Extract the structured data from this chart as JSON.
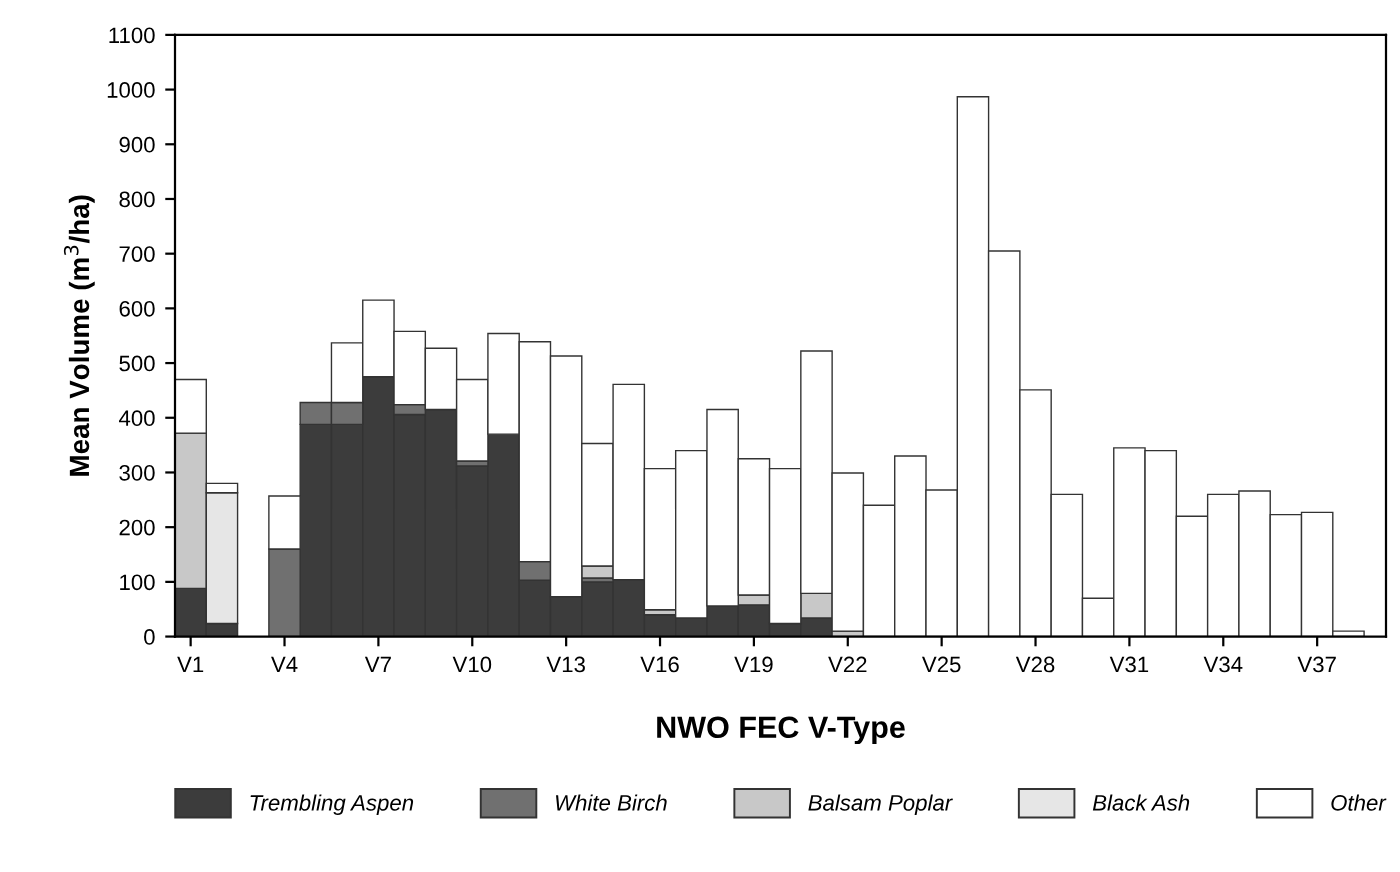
{
  "chart_data": {
    "type": "bar",
    "stacked": true,
    "xlabel": "NWO FEC V-Type",
    "ylabel": "Mean Volume (m$^{3}$/ha)",
    "categories": [
      "V1",
      null,
      null,
      "V4",
      null,
      null,
      "V7",
      null,
      null,
      "V10",
      null,
      null,
      "V13",
      null,
      null,
      "V16",
      null,
      null,
      "V19",
      null,
      null,
      "V22",
      null,
      null,
      "V25",
      null,
      null,
      "V28",
      null,
      null,
      "V31",
      null,
      null,
      "V34",
      null,
      null,
      "V37",
      null
    ],
    "series": [
      {
        "name": "Trembling Aspen",
        "color": "#3c3c3c",
        "values": [
          88,
          24,
          null,
          null,
          388,
          388,
          475,
          406,
          415,
          312,
          370,
          103,
          73,
          100,
          104,
          40,
          34,
          56,
          58,
          24,
          34,
          null,
          null,
          null,
          null,
          null,
          null,
          null,
          null,
          null,
          null,
          null,
          null,
          null,
          null,
          null,
          null,
          null
        ]
      },
      {
        "name": "White Birch",
        "color": "#707070",
        "values": [
          null,
          null,
          null,
          160,
          40,
          40,
          null,
          18,
          null,
          9,
          null,
          34,
          null,
          7,
          null,
          null,
          null,
          null,
          null,
          null,
          null,
          null,
          null,
          null,
          null,
          null,
          null,
          null,
          null,
          null,
          null,
          null,
          null,
          null,
          null,
          null,
          null,
          null
        ]
      },
      {
        "name": "Balsam Poplar",
        "color": "#c8c8c8",
        "values": [
          284,
          null,
          null,
          null,
          null,
          null,
          null,
          null,
          null,
          null,
          null,
          null,
          null,
          22,
          null,
          9,
          null,
          null,
          18,
          null,
          45,
          10,
          null,
          null,
          null,
          null,
          null,
          null,
          null,
          null,
          null,
          null,
          null,
          null,
          null,
          null,
          null,
          null
        ]
      },
      {
        "name": "Black Ash",
        "color": "#e6e6e6",
        "values": [
          null,
          239,
          null,
          null,
          null,
          null,
          null,
          null,
          null,
          null,
          null,
          null,
          null,
          null,
          null,
          null,
          null,
          null,
          null,
          null,
          null,
          null,
          null,
          null,
          null,
          null,
          null,
          null,
          null,
          null,
          null,
          null,
          null,
          null,
          null,
          null,
          null,
          null
        ]
      },
      {
        "name": "Other",
        "color": "#ffffff",
        "values": [
          98,
          17,
          null,
          97,
          null,
          109,
          140,
          134,
          112,
          149,
          184,
          402,
          440,
          224,
          357,
          258,
          306,
          359,
          249,
          283,
          443,
          289,
          240,
          330,
          268,
          987,
          705,
          451,
          260,
          70,
          345,
          340,
          220,
          260,
          266,
          223,
          227,
          10
        ]
      }
    ],
    "ylim": [
      0,
      1100
    ],
    "yticks": [
      0,
      100,
      200,
      300,
      400,
      500,
      600,
      700,
      800,
      900,
      1000,
      1100
    ],
    "legend": "bottom"
  }
}
